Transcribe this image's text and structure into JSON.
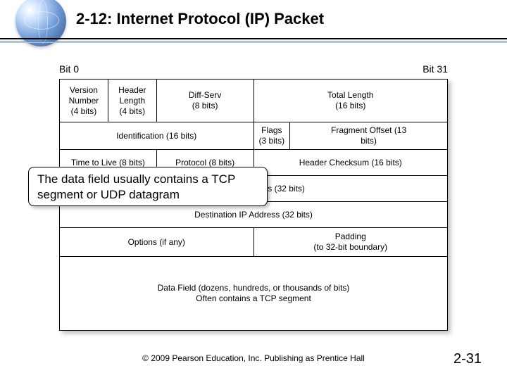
{
  "title": "2-12: Internet Protocol (IP) Packet",
  "bit_left": "Bit 0",
  "bit_right": "Bit 31",
  "col_widths_pct": [
    12.5,
    12.5,
    25,
    9.375,
    40.625
  ],
  "rows": {
    "r0": {
      "version": "Version\nNumber\n(4 bits)",
      "hlen": "Header\nLength\n(4 bits)",
      "diffserv": "Diff-Serv\n(8 bits)",
      "totlen": "Total Length\n(16 bits)"
    },
    "r1": {
      "ident": "Identification (16 bits)",
      "flags": "Flags\n(3 bits)",
      "frag": "Fragment Offset (13\nbits)"
    },
    "r2": {
      "ttl": "Time to Live (8 bits)",
      "proto": "Protocol (8 bits)",
      "ck": "Header Checksum (16 bits)"
    },
    "r3": {
      "srcip": "Source IP Address (32 bits)"
    },
    "r4": {
      "dstip": "Destination IP Address (32 bits)"
    },
    "r5": {
      "opts": "Options (if any)",
      "pad": "Padding\n(to 32-bit boundary)"
    },
    "r6": {
      "data": "Data Field (dozens, hundreds, or thousands of bits)\nOften contains a TCP segment"
    }
  },
  "callout": "The data field usually contains a TCP segment or UDP datagram",
  "footer": "© 2009 Pearson Education, Inc.  Publishing as Prentice Hall",
  "page_num": "2-31",
  "colors": {
    "text": "#000000",
    "border": "#000000",
    "bg": "#ffffff",
    "band1": "#000000",
    "band2": "#6a8cbf",
    "band3": "#a9c0de"
  }
}
